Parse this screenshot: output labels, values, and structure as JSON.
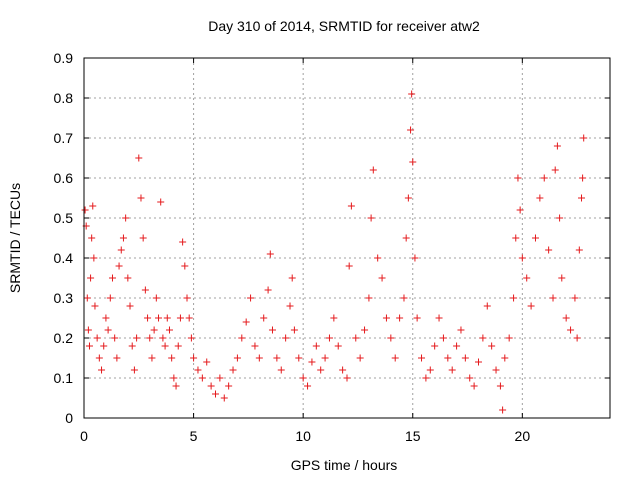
{
  "chart_data": {
    "type": "scatter",
    "title": "Day 310 of 2014, SRMTID for receiver atw2",
    "xlabel": "GPS time / hours",
    "ylabel": "SRMTID / TECUs",
    "xlim": [
      0,
      24
    ],
    "ylim": [
      0,
      0.9
    ],
    "xticks": [
      0,
      5,
      10,
      15,
      20
    ],
    "yticks": [
      0,
      0.1,
      0.2,
      0.3,
      0.4,
      0.5,
      0.6,
      0.7,
      0.8,
      0.9
    ],
    "grid": true,
    "color": "#e41a1c",
    "marker": "plus",
    "series": [
      {
        "name": "SRMTID",
        "points": [
          [
            0.05,
            0.52
          ],
          [
            0.1,
            0.48
          ],
          [
            0.15,
            0.3
          ],
          [
            0.2,
            0.22
          ],
          [
            0.25,
            0.18
          ],
          [
            0.3,
            0.35
          ],
          [
            0.35,
            0.45
          ],
          [
            0.4,
            0.53
          ],
          [
            0.45,
            0.4
          ],
          [
            0.5,
            0.28
          ],
          [
            0.6,
            0.2
          ],
          [
            0.7,
            0.15
          ],
          [
            0.8,
            0.12
          ],
          [
            0.9,
            0.18
          ],
          [
            1.0,
            0.25
          ],
          [
            1.1,
            0.22
          ],
          [
            1.2,
            0.3
          ],
          [
            1.3,
            0.35
          ],
          [
            1.4,
            0.2
          ],
          [
            1.5,
            0.15
          ],
          [
            1.6,
            0.38
          ],
          [
            1.7,
            0.42
          ],
          [
            1.8,
            0.45
          ],
          [
            1.9,
            0.5
          ],
          [
            2.0,
            0.35
          ],
          [
            2.1,
            0.28
          ],
          [
            2.2,
            0.18
          ],
          [
            2.3,
            0.12
          ],
          [
            2.4,
            0.2
          ],
          [
            2.5,
            0.65
          ],
          [
            2.6,
            0.55
          ],
          [
            2.7,
            0.45
          ],
          [
            2.8,
            0.32
          ],
          [
            2.9,
            0.25
          ],
          [
            3.0,
            0.2
          ],
          [
            3.1,
            0.15
          ],
          [
            3.2,
            0.22
          ],
          [
            3.3,
            0.3
          ],
          [
            3.4,
            0.25
          ],
          [
            3.5,
            0.54
          ],
          [
            3.6,
            0.2
          ],
          [
            3.7,
            0.18
          ],
          [
            3.8,
            0.25
          ],
          [
            3.9,
            0.22
          ],
          [
            4.0,
            0.15
          ],
          [
            4.1,
            0.1
          ],
          [
            4.2,
            0.08
          ],
          [
            4.3,
            0.18
          ],
          [
            4.4,
            0.25
          ],
          [
            4.5,
            0.44
          ],
          [
            4.6,
            0.38
          ],
          [
            4.7,
            0.3
          ],
          [
            4.8,
            0.25
          ],
          [
            4.9,
            0.2
          ],
          [
            5.0,
            0.15
          ],
          [
            5.2,
            0.12
          ],
          [
            5.4,
            0.1
          ],
          [
            5.6,
            0.14
          ],
          [
            5.8,
            0.08
          ],
          [
            6.0,
            0.06
          ],
          [
            6.2,
            0.1
          ],
          [
            6.4,
            0.05
          ],
          [
            6.6,
            0.08
          ],
          [
            6.8,
            0.12
          ],
          [
            7.0,
            0.15
          ],
          [
            7.2,
            0.2
          ],
          [
            7.4,
            0.24
          ],
          [
            7.6,
            0.3
          ],
          [
            7.8,
            0.18
          ],
          [
            8.0,
            0.15
          ],
          [
            8.2,
            0.25
          ],
          [
            8.4,
            0.32
          ],
          [
            8.5,
            0.41
          ],
          [
            8.6,
            0.22
          ],
          [
            8.8,
            0.15
          ],
          [
            9.0,
            0.12
          ],
          [
            9.2,
            0.2
          ],
          [
            9.4,
            0.28
          ],
          [
            9.5,
            0.35
          ],
          [
            9.6,
            0.22
          ],
          [
            9.8,
            0.15
          ],
          [
            10.0,
            0.1
          ],
          [
            10.2,
            0.08
          ],
          [
            10.4,
            0.14
          ],
          [
            10.6,
            0.18
          ],
          [
            10.8,
            0.12
          ],
          [
            11.0,
            0.15
          ],
          [
            11.2,
            0.2
          ],
          [
            11.4,
            0.25
          ],
          [
            11.6,
            0.18
          ],
          [
            11.8,
            0.12
          ],
          [
            12.0,
            0.1
          ],
          [
            12.1,
            0.38
          ],
          [
            12.2,
            0.53
          ],
          [
            12.4,
            0.2
          ],
          [
            12.6,
            0.15
          ],
          [
            12.8,
            0.22
          ],
          [
            13.0,
            0.3
          ],
          [
            13.1,
            0.5
          ],
          [
            13.2,
            0.62
          ],
          [
            13.4,
            0.4
          ],
          [
            13.6,
            0.35
          ],
          [
            13.8,
            0.25
          ],
          [
            14.0,
            0.2
          ],
          [
            14.2,
            0.15
          ],
          [
            14.4,
            0.25
          ],
          [
            14.6,
            0.3
          ],
          [
            14.7,
            0.45
          ],
          [
            14.8,
            0.55
          ],
          [
            14.9,
            0.72
          ],
          [
            14.95,
            0.81
          ],
          [
            15.0,
            0.64
          ],
          [
            15.1,
            0.4
          ],
          [
            15.2,
            0.25
          ],
          [
            15.4,
            0.15
          ],
          [
            15.6,
            0.1
          ],
          [
            15.8,
            0.12
          ],
          [
            16.0,
            0.18
          ],
          [
            16.2,
            0.25
          ],
          [
            16.4,
            0.2
          ],
          [
            16.6,
            0.15
          ],
          [
            16.8,
            0.12
          ],
          [
            17.0,
            0.18
          ],
          [
            17.2,
            0.22
          ],
          [
            17.4,
            0.15
          ],
          [
            17.6,
            0.1
          ],
          [
            17.8,
            0.08
          ],
          [
            18.0,
            0.14
          ],
          [
            18.2,
            0.2
          ],
          [
            18.4,
            0.28
          ],
          [
            18.6,
            0.18
          ],
          [
            18.8,
            0.12
          ],
          [
            19.0,
            0.08
          ],
          [
            19.1,
            0.02
          ],
          [
            19.2,
            0.15
          ],
          [
            19.4,
            0.2
          ],
          [
            19.6,
            0.3
          ],
          [
            19.7,
            0.45
          ],
          [
            19.8,
            0.6
          ],
          [
            19.9,
            0.52
          ],
          [
            20.0,
            0.4
          ],
          [
            20.2,
            0.35
          ],
          [
            20.4,
            0.28
          ],
          [
            20.6,
            0.45
          ],
          [
            20.8,
            0.55
          ],
          [
            21.0,
            0.6
          ],
          [
            21.2,
            0.42
          ],
          [
            21.4,
            0.3
          ],
          [
            21.5,
            0.62
          ],
          [
            21.6,
            0.68
          ],
          [
            21.7,
            0.5
          ],
          [
            21.8,
            0.35
          ],
          [
            22.0,
            0.25
          ],
          [
            22.2,
            0.22
          ],
          [
            22.4,
            0.3
          ],
          [
            22.5,
            0.2
          ],
          [
            22.6,
            0.42
          ],
          [
            22.7,
            0.55
          ],
          [
            22.75,
            0.6
          ],
          [
            22.8,
            0.7
          ]
        ]
      }
    ]
  }
}
